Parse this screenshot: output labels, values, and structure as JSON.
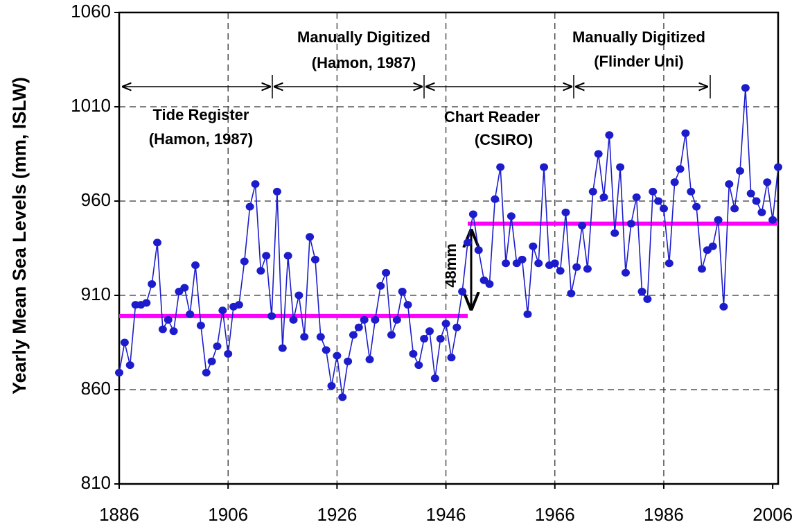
{
  "chart_data": {
    "type": "line",
    "y_label": "Yearly Mean Sea Levels (mm, ISLW)",
    "x": [
      1886,
      1887,
      1888,
      1889,
      1890,
      1891,
      1892,
      1893,
      1894,
      1895,
      1896,
      1897,
      1898,
      1899,
      1900,
      1901,
      1902,
      1903,
      1904,
      1905,
      1906,
      1907,
      1908,
      1909,
      1910,
      1911,
      1912,
      1913,
      1914,
      1915,
      1916,
      1917,
      1918,
      1919,
      1920,
      1921,
      1922,
      1923,
      1924,
      1925,
      1926,
      1927,
      1928,
      1929,
      1930,
      1931,
      1932,
      1933,
      1934,
      1935,
      1936,
      1937,
      1938,
      1939,
      1940,
      1941,
      1942,
      1943,
      1944,
      1945,
      1946,
      1947,
      1948,
      1949,
      1950,
      1951,
      1952,
      1953,
      1954,
      1955,
      1956,
      1957,
      1958,
      1959,
      1960,
      1961,
      1962,
      1963,
      1964,
      1965,
      1966,
      1967,
      1968,
      1969,
      1970,
      1971,
      1972,
      1973,
      1974,
      1975,
      1976,
      1977,
      1978,
      1979,
      1980,
      1981,
      1982,
      1983,
      1984,
      1985,
      1986,
      1987,
      1988,
      1989,
      1990,
      1991,
      1992,
      1993,
      1994,
      1995,
      1996,
      1997,
      1998,
      1999,
      2000,
      2001,
      2002,
      2003,
      2004,
      2005,
      2006,
      2007
    ],
    "series": [
      {
        "name": "Yearly mean sea level",
        "color": "#1c1ccc",
        "values": [
          869,
          885,
          873,
          905,
          905,
          906,
          916,
          938,
          892,
          897,
          891,
          912,
          914,
          900,
          926,
          894,
          869,
          875,
          883,
          902,
          879,
          904,
          905,
          928,
          957,
          969,
          923,
          931,
          899,
          965,
          882,
          931,
          897,
          910,
          888,
          941,
          929,
          888,
          881,
          862,
          878,
          856,
          875,
          889,
          893,
          897,
          876,
          897,
          915,
          922,
          889,
          897,
          912,
          905,
          879,
          873,
          887,
          891,
          866,
          887,
          895,
          877,
          893,
          912,
          938,
          953,
          934,
          918,
          916,
          961,
          978,
          927,
          952,
          927,
          929,
          900,
          936,
          927,
          978,
          926,
          927,
          923,
          954,
          911,
          925,
          947,
          924,
          965,
          985,
          962,
          995,
          943,
          978,
          922,
          948,
          962,
          912,
          908,
          965,
          960,
          956,
          927,
          970,
          977,
          996,
          965,
          957,
          924,
          934,
          936,
          950,
          904,
          969,
          956,
          976,
          1020,
          964,
          960,
          954,
          970,
          950,
          978
        ]
      }
    ],
    "mean_lines": [
      {
        "value": 899,
        "from": 1886,
        "to": 1950,
        "color": "#ff00ff"
      },
      {
        "value": 948,
        "from": 1950,
        "to": 2007,
        "color": "#ff00ff"
      }
    ],
    "difference_label": "48mm",
    "annotations": [
      {
        "lines": [
          "Tide Register",
          "(Hamon, 1987)"
        ]
      },
      {
        "lines": [
          "Manually Digitized",
          "(Hamon, 1987)"
        ]
      },
      {
        "lines": [
          "Chart Reader",
          "(CSIRO)"
        ]
      },
      {
        "lines": [
          "Manually Digitized",
          "(Flinder Uni)"
        ]
      }
    ],
    "xlim": [
      1886,
      2007
    ],
    "xticks": [
      1886,
      1906,
      1926,
      1946,
      1966,
      1986,
      2006
    ],
    "ylim": [
      810,
      1060
    ],
    "yticks": [
      810,
      860,
      910,
      960,
      1010,
      1060
    ],
    "grid": true
  }
}
